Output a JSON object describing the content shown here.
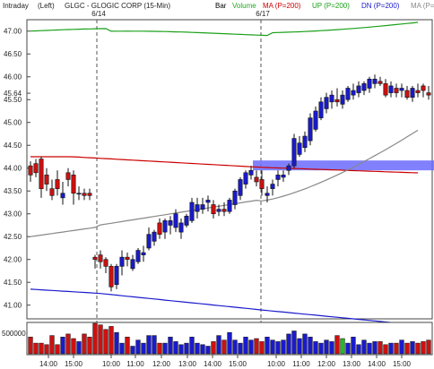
{
  "header": {
    "interval": "Intraday",
    "axis_side": "(Left)",
    "title": "GLGC - GLOGIC CORP (15-Min)",
    "legend": [
      {
        "label": "Bar",
        "color": "#000000"
      },
      {
        "label": "Volume",
        "color": "#22aa22"
      },
      {
        "label": "MA (P=200)",
        "color": "#cc0000"
      },
      {
        "label": "UP (P=200)",
        "color": "#1aa01a"
      },
      {
        "label": "DN (P=200)",
        "color": "#1a1acc"
      },
      {
        "label": "MA (P=",
        "color": "#888888"
      }
    ]
  },
  "colors": {
    "up_candle": "#1a1acc",
    "down_candle": "#cc1111",
    "ma_red": "#cc0000",
    "up_band": "#1aa01a",
    "dn_band": "#1a1acc",
    "ma_gray": "#888888",
    "highlight_band": "#6b6bff",
    "volume_green": "#22bb22"
  },
  "chart_data": {
    "type": "candlestick",
    "session_labels": [
      "6/14",
      "6/17"
    ],
    "y_ticks": [
      41.0,
      41.5,
      42.0,
      42.5,
      43.0,
      43.5,
      44.0,
      44.5,
      45.0,
      45.5,
      45.64,
      46.0,
      46.5,
      47.0
    ],
    "ylim": [
      40.7,
      47.25
    ],
    "x_ticks": [
      "14:00",
      "15:00",
      "10:00",
      "11:00",
      "12:00",
      "13:00",
      "14:00",
      "15:00",
      "10:00",
      "11:00",
      "12:00",
      "13:00",
      "14:00",
      "15:00"
    ],
    "volume_axis_label": "500000",
    "highlight_price": 44.05,
    "candles": [
      [
        44.05,
        44.15,
        43.7,
        43.85
      ],
      [
        44.1,
        44.2,
        43.8,
        43.9
      ],
      [
        44.2,
        44.25,
        43.35,
        43.55
      ],
      [
        43.85,
        44.0,
        43.5,
        43.65
      ],
      [
        43.55,
        43.75,
        43.3,
        43.4
      ],
      [
        43.75,
        43.95,
        43.4,
        43.55
      ],
      [
        43.35,
        43.7,
        43.2,
        43.45
      ],
      [
        43.9,
        44.0,
        43.6,
        43.75
      ],
      [
        43.85,
        43.95,
        43.2,
        43.45
      ],
      [
        43.45,
        43.6,
        43.3,
        43.45
      ],
      [
        43.45,
        43.55,
        43.3,
        43.4
      ],
      [
        43.45,
        43.55,
        43.3,
        43.4
      ],
      [
        42.05,
        42.1,
        41.8,
        42.0
      ],
      [
        42.1,
        42.2,
        41.8,
        41.95
      ],
      [
        42.0,
        42.05,
        41.7,
        41.85
      ],
      [
        41.85,
        41.9,
        41.3,
        41.4
      ],
      [
        41.45,
        41.9,
        41.35,
        41.85
      ],
      [
        41.85,
        42.2,
        41.65,
        42.05
      ],
      [
        42.05,
        42.15,
        41.85,
        42.0
      ],
      [
        41.8,
        42.1,
        41.75,
        42.0
      ],
      [
        41.95,
        42.25,
        41.9,
        42.2
      ],
      [
        42.1,
        42.3,
        41.95,
        42.15
      ],
      [
        42.25,
        42.7,
        42.2,
        42.55
      ],
      [
        42.4,
        42.65,
        42.3,
        42.6
      ],
      [
        42.8,
        42.9,
        42.45,
        42.55
      ],
      [
        42.6,
        42.9,
        42.45,
        42.85
      ],
      [
        42.75,
        42.95,
        42.55,
        42.85
      ],
      [
        42.7,
        43.1,
        42.6,
        43.0
      ],
      [
        42.6,
        42.9,
        42.45,
        42.8
      ],
      [
        42.75,
        43.0,
        42.7,
        42.95
      ],
      [
        42.85,
        43.35,
        42.8,
        43.25
      ],
      [
        43.05,
        43.35,
        42.9,
        43.2
      ],
      [
        43.1,
        43.35,
        43.0,
        43.2
      ],
      [
        43.25,
        43.4,
        43.05,
        43.3
      ],
      [
        43.2,
        43.3,
        42.9,
        43.0
      ],
      [
        43.05,
        43.2,
        42.95,
        43.1
      ],
      [
        43.1,
        43.25,
        42.95,
        43.05
      ],
      [
        43.05,
        43.35,
        43.0,
        43.3
      ],
      [
        43.2,
        43.55,
        43.1,
        43.5
      ],
      [
        43.4,
        43.8,
        43.3,
        43.75
      ],
      [
        43.65,
        43.95,
        43.55,
        43.9
      ],
      [
        43.85,
        44.05,
        43.75,
        43.95
      ],
      [
        43.8,
        43.95,
        43.6,
        43.7
      ],
      [
        43.75,
        43.95,
        43.4,
        43.55
      ],
      [
        43.4,
        43.6,
        43.25,
        43.45
      ],
      [
        43.55,
        43.75,
        43.4,
        43.65
      ],
      [
        43.75,
        43.95,
        43.6,
        43.85
      ],
      [
        43.8,
        43.95,
        43.7,
        43.85
      ],
      [
        43.95,
        44.1,
        43.85,
        44.05
      ],
      [
        44.05,
        44.75,
        44.0,
        44.65
      ],
      [
        44.3,
        44.7,
        44.25,
        44.55
      ],
      [
        44.45,
        44.8,
        44.35,
        44.7
      ],
      [
        44.6,
        45.2,
        44.5,
        45.1
      ],
      [
        44.85,
        45.35,
        44.8,
        45.25
      ],
      [
        45.1,
        45.55,
        45.05,
        45.45
      ],
      [
        45.3,
        45.65,
        45.2,
        45.55
      ],
      [
        45.45,
        45.7,
        45.3,
        45.6
      ],
      [
        45.5,
        45.75,
        45.35,
        45.45
      ],
      [
        45.4,
        45.7,
        45.3,
        45.6
      ],
      [
        45.5,
        45.8,
        45.45,
        45.75
      ],
      [
        45.6,
        45.85,
        45.5,
        45.7
      ],
      [
        45.65,
        45.9,
        45.55,
        45.8
      ],
      [
        45.7,
        45.9,
        45.6,
        45.85
      ],
      [
        45.75,
        46.0,
        45.65,
        45.95
      ],
      [
        45.85,
        46.05,
        45.75,
        45.95
      ],
      [
        45.9,
        46.0,
        45.8,
        45.85
      ],
      [
        45.85,
        45.95,
        45.55,
        45.6
      ],
      [
        45.65,
        45.9,
        45.55,
        45.8
      ],
      [
        45.75,
        45.85,
        45.55,
        45.65
      ],
      [
        45.7,
        45.85,
        45.55,
        45.75
      ],
      [
        45.7,
        45.8,
        45.5,
        45.55
      ],
      [
        45.55,
        45.8,
        45.45,
        45.75
      ],
      [
        45.7,
        45.85,
        45.55,
        45.65
      ],
      [
        45.8,
        45.85,
        45.55,
        45.7
      ],
      [
        45.65,
        45.8,
        45.5,
        45.6
      ]
    ],
    "volume": [
      0.55,
      0.35,
      0.35,
      0.3,
      0.6,
      0.3,
      0.55,
      0.65,
      0.5,
      0.4,
      0.65,
      0.55,
      1.0,
      0.95,
      0.8,
      0.9,
      0.7,
      0.35,
      0.55,
      0.25,
      0.45,
      0.35,
      0.6,
      0.6,
      0.35,
      0.35,
      0.55,
      0.4,
      0.3,
      0.35,
      0.55,
      0.35,
      0.3,
      0.25,
      0.4,
      0.6,
      0.45,
      0.7,
      0.45,
      0.35,
      0.55,
      0.45,
      0.5,
      0.4,
      0.55,
      0.45,
      0.4,
      0.45,
      0.65,
      0.75,
      0.5,
      0.65,
      0.55,
      0.4,
      0.35,
      0.45,
      0.4,
      0.6,
      0.5,
      0.35,
      0.55,
      0.3,
      0.45,
      0.35,
      0.4,
      0.4,
      0.3,
      0.35,
      0.35,
      0.45,
      0.35,
      0.4,
      0.35,
      0.4,
      0.45
    ]
  }
}
